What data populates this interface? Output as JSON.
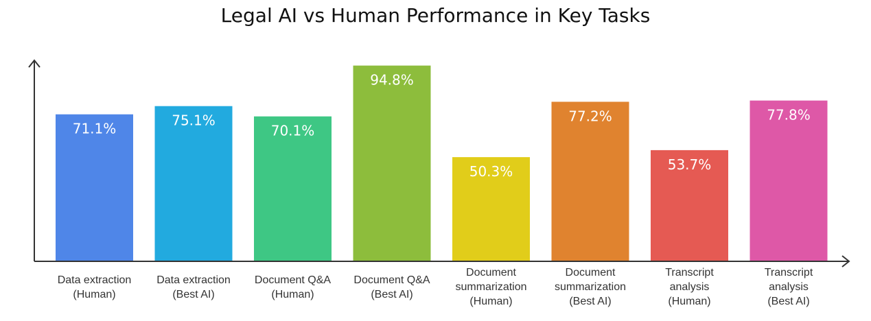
{
  "chart_data": {
    "type": "bar",
    "title": "Legal AI vs Human Performance in Key Tasks",
    "xlabel": "",
    "ylabel": "",
    "ylim": [
      0,
      100
    ],
    "grid": false,
    "categories": [
      [
        "Data extraction",
        "(Human)"
      ],
      [
        "Data extraction",
        "(Best AI)"
      ],
      [
        "Document Q&A",
        "(Human)"
      ],
      [
        "Document Q&A",
        "(Best AI)"
      ],
      [
        "Document",
        "summarization",
        "(Human)"
      ],
      [
        "Document",
        "summarization",
        "(Best AI)"
      ],
      [
        "Transcript",
        "analysis",
        "(Human)"
      ],
      [
        "Transcript",
        "analysis",
        "(Best AI)"
      ]
    ],
    "values": [
      71.1,
      75.1,
      70.1,
      94.8,
      50.3,
      77.2,
      53.7,
      77.8
    ],
    "value_labels": [
      "71.1%",
      "75.1%",
      "70.1%",
      "94.8%",
      "50.3%",
      "77.2%",
      "53.7%",
      "77.8%"
    ],
    "colors": [
      "#4f86e8",
      "#22aadf",
      "#3ec784",
      "#8dbd3c",
      "#e1cd1a",
      "#e0832f",
      "#e55a53",
      "#de58a7"
    ]
  }
}
